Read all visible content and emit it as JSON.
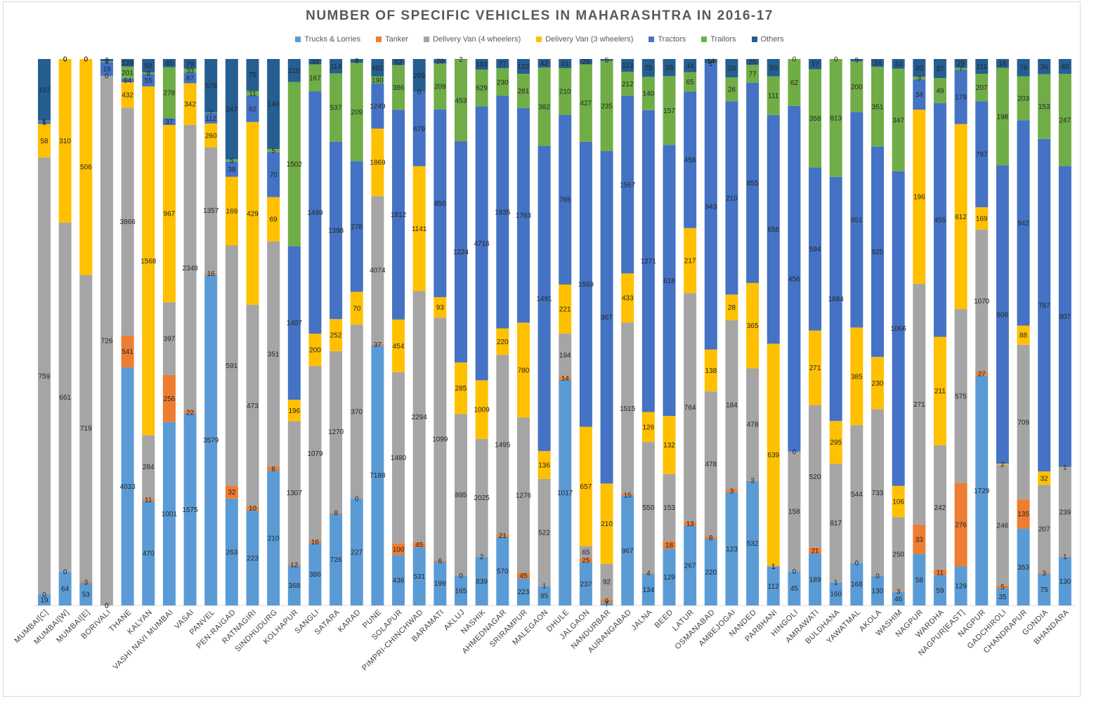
{
  "chart_data": {
    "type": "bar",
    "stacking": "percent",
    "title": "NUMBER OF SPECIFIC VEHICLES IN MAHARASHTRA IN 2016-17",
    "legend_position": "top",
    "grid": false,
    "categories": [
      "MUMBAI[C]",
      "MUMBAI[W]",
      "MUMBAI[E]",
      "BORIVALI",
      "THANE",
      "KALYAN",
      "VASHI NAVI MUMBAI",
      "VASAI",
      "PANVEL",
      "PEN-RAIGAD",
      "RATNAGIRI",
      "SINDHUDURG",
      "KOLHAPUR",
      "SANGLI",
      "SATARA",
      "KARAD",
      "PUNE",
      "SOLAPUR",
      "PIMPRI-CHINCHWAD",
      "BARAMATI",
      "AKLUJ",
      "NASHIK",
      "AHMEDNAGAR",
      "SRIRAMPUR",
      "MALEGAON",
      "DHULE",
      "JALGAON",
      "NANDURBAR",
      "AURANGABAD",
      "JALNA",
      "BEED",
      "LATUR",
      "OSMANABAD",
      "AMBEJOGAI",
      "NANDED",
      "PARBHANI",
      "HINGOLI",
      "AMRAWATI",
      "BULDHANA",
      "YAWATMAL",
      "AKOLA",
      "WASHIM",
      "NAGPUR",
      "WARDHA",
      "NAGPUR[EAST]",
      "NAGPUR",
      "GADCHIROLI",
      "CHANDRAPUR",
      "GONDIA",
      "BHANDARA"
    ],
    "series": [
      {
        "name": "Trucks & Lorries",
        "color": "#5b9bd5",
        "values": [
          19,
          64,
          53,
          0,
          4033,
          470,
          1001,
          1575,
          3579,
          263,
          223,
          210,
          368,
          386,
          726,
          227,
          7188,
          436,
          531,
          199,
          165,
          839,
          570,
          223,
          95,
          1017,
          237,
          7,
          967,
          134,
          129,
          267,
          220,
          123,
          532,
          112,
          45,
          189,
          160,
          168,
          130,
          46,
          58,
          59,
          129,
          1729,
          35,
          353,
          75,
          130
        ]
      },
      {
        "name": "Tanker",
        "color": "#ed7d31",
        "values": [
          0,
          0,
          3,
          0,
          541,
          11,
          256,
          22,
          16,
          32,
          10,
          6,
          12,
          16,
          8,
          0,
          37,
          100,
          45,
          6,
          0,
          2,
          21,
          45,
          1,
          14,
          25,
          9,
          15,
          4,
          18,
          13,
          8,
          3,
          3,
          1,
          0,
          21,
          1,
          0,
          0,
          3,
          33,
          11,
          276,
          27,
          5,
          135,
          3,
          1
        ]
      },
      {
        "name": "Delivery Van (4 wheelers)",
        "color": "#a5a5a5",
        "values": [
          759,
          661,
          719,
          726,
          3866,
          284,
          397,
          2348,
          1357,
          591,
          473,
          351,
          1307,
          1079,
          1270,
          370,
          4074,
          1480,
          2294,
          1099,
          895,
          2025,
          1495,
          1276,
          522,
          194,
          65,
          92,
          1515,
          550,
          153,
          764,
          478,
          184,
          478,
          1,
          158,
          520,
          817,
          544,
          733,
          250,
          271,
          242,
          575,
          1070,
          246,
          709,
          207,
          239
        ]
      },
      {
        "name": "Delivery Van (3 wheelers)",
        "color": "#ffc000",
        "values": [
          58,
          310,
          506,
          0,
          432,
          1568,
          967,
          342,
          260,
          169,
          429,
          69,
          196,
          200,
          252,
          70,
          1869,
          454,
          1141,
          93,
          285,
          1009,
          220,
          780,
          136,
          221,
          657,
          210,
          433,
          126,
          132,
          217,
          138,
          28,
          365,
          639,
          0,
          271,
          295,
          385,
          230,
          106,
          196,
          211,
          612,
          169,
          2,
          88,
          32,
          1
        ]
      },
      {
        "name": "Tractors",
        "color": "#4472c4",
        "values": [
          5,
          0,
          0,
          19,
          64,
          55,
          37,
          87,
          112,
          38,
          62,
          70,
          1407,
          1499,
          1398,
          278,
          1249,
          1812,
          679,
          850,
          1224,
          4716,
          1935,
          1763,
          1491,
          765,
          1569,
          867,
          1567,
          1271,
          618,
          456,
          943,
          210,
          855,
          658,
          456,
          594,
          1684,
          851,
          925,
          1066,
          34,
          455,
          179,
          797,
          606,
          942,
          787,
          807
        ]
      },
      {
        "name": "Trailors",
        "color": "#70ad47",
        "values": [
          1,
          0,
          0,
          1,
          201,
          8,
          278,
          33,
          7,
          5,
          11,
          5,
          1502,
          167,
          537,
          209,
          190,
          386,
          0,
          209,
          453,
          629,
          230,
          281,
          382,
          210,
          427,
          235,
          212,
          140,
          157,
          65,
          1,
          26,
          77,
          111,
          62,
          358,
          813,
          200,
          351,
          347,
          3,
          49,
          7,
          207,
          198,
          203,
          153,
          247
        ]
      },
      {
        "name": "Others",
        "color": "#255e91",
        "values": [
          107,
          0,
          0,
          3,
          129,
          60,
          45,
          79,
          578,
          247,
          75,
          140,
          210,
          33,
          114,
          8,
          482,
          52,
          299,
          20,
          2,
          183,
          77,
          122,
          42,
          41,
          29,
          5,
          113,
          75,
          39,
          44,
          14,
          20,
          25,
          50,
          0,
          37,
          0,
          9,
          34,
          33,
          20,
          37,
          29,
          111,
          18,
          79,
          36,
          40
        ]
      }
    ]
  }
}
